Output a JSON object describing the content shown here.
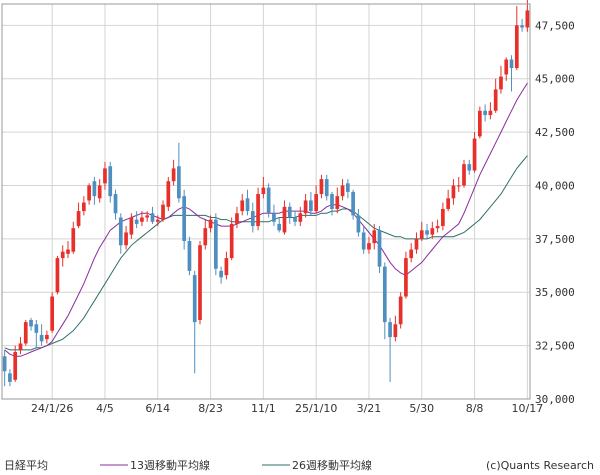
{
  "chart_data": {
    "type": "candlestick",
    "title": "",
    "xlabel": "",
    "ylabel": "",
    "ylim": [
      30000,
      48500
    ],
    "y_ticks": [
      30000,
      32500,
      35000,
      37500,
      40000,
      42500,
      45000,
      47500
    ],
    "y_tick_labels": [
      "30,000",
      "32,500",
      "35,000",
      "37,500",
      "40,000",
      "42,500",
      "45,000",
      "47,500"
    ],
    "grid": true,
    "legend_position": "bottom",
    "colors": {
      "up": "#e8302b",
      "down": "#4f8fc0",
      "ma13": "#8a2c9c",
      "ma26": "#2e6f6a",
      "grid": "#d4d4d4",
      "frame": "#999999"
    },
    "legend": [
      "日経平均",
      "13週移動平均線",
      "26週移動平均線"
    ],
    "x_ticks": [
      {
        "label": "24/1/26",
        "index": 9
      },
      {
        "label": "4/5",
        "index": 19
      },
      {
        "label": "6/14",
        "index": 29
      },
      {
        "label": "8/23",
        "index": 39
      },
      {
        "label": "11/1",
        "index": 49
      },
      {
        "label": "25/1/10",
        "index": 59
      },
      {
        "label": "3/21",
        "index": 69
      },
      {
        "label": "5/30",
        "index": 79
      },
      {
        "label": "8/8",
        "index": 89
      },
      {
        "label": "10/17",
        "index": 99
      }
    ],
    "candles": [
      [
        32000,
        31300,
        32300,
        30600
      ],
      [
        31200,
        30800,
        31400,
        30600
      ],
      [
        30900,
        32200,
        32500,
        30800
      ],
      [
        32300,
        32600,
        32900,
        32100
      ],
      [
        32600,
        33600,
        33700,
        32500
      ],
      [
        33700,
        33400,
        33800,
        33200
      ],
      [
        33500,
        33100,
        33700,
        32400
      ],
      [
        33000,
        32700,
        33500,
        32500
      ],
      [
        32800,
        33000,
        33200,
        32600
      ],
      [
        33200,
        34800,
        35000,
        33100
      ],
      [
        35000,
        36600,
        36700,
        34900
      ],
      [
        36600,
        36900,
        37200,
        36200
      ],
      [
        36800,
        37000,
        37400,
        36600
      ],
      [
        36900,
        38000,
        38300,
        36800
      ],
      [
        38100,
        38800,
        39200,
        38000
      ],
      [
        38800,
        39200,
        39500,
        38600
      ],
      [
        39300,
        40000,
        40100,
        39100
      ],
      [
        40200,
        39500,
        40400,
        39100
      ],
      [
        39400,
        40000,
        40300,
        39200
      ],
      [
        40100,
        40800,
        41100,
        39800
      ],
      [
        40900,
        39500,
        41100,
        39200
      ],
      [
        39600,
        38700,
        39800,
        38400
      ],
      [
        38500,
        37200,
        38700,
        36800
      ],
      [
        37200,
        37800,
        38100,
        37000
      ],
      [
        37700,
        38500,
        38700,
        37500
      ],
      [
        38400,
        38200,
        38800,
        38000
      ],
      [
        38300,
        38500,
        38800,
        38100
      ],
      [
        38500,
        38600,
        38800,
        38300
      ],
      [
        38700,
        38300,
        39000,
        38200
      ],
      [
        38300,
        38400,
        38600,
        38100
      ],
      [
        38400,
        39100,
        39300,
        38300
      ],
      [
        39000,
        40200,
        40400,
        38800
      ],
      [
        40200,
        40800,
        41200,
        40000
      ],
      [
        40900,
        39400,
        42000,
        39200
      ],
      [
        39500,
        37400,
        39800,
        37000
      ],
      [
        37400,
        36000,
        37600,
        35800
      ],
      [
        35800,
        33600,
        36000,
        31200
      ],
      [
        33700,
        37200,
        37400,
        33500
      ],
      [
        37200,
        38000,
        38400,
        37000
      ],
      [
        38000,
        38400,
        38600,
        37800
      ],
      [
        38400,
        36100,
        38700,
        35800
      ],
      [
        36000,
        35700,
        36200,
        35400
      ],
      [
        35800,
        36600,
        36900,
        35600
      ],
      [
        36600,
        38200,
        38500,
        36500
      ],
      [
        38200,
        38700,
        39000,
        38000
      ],
      [
        38800,
        39300,
        39600,
        38600
      ],
      [
        39400,
        38800,
        39800,
        38600
      ],
      [
        38800,
        38100,
        39200,
        37800
      ],
      [
        38100,
        39600,
        39900,
        37900
      ],
      [
        39600,
        39900,
        40400,
        39400
      ],
      [
        39900,
        38700,
        40100,
        38500
      ],
      [
        38700,
        38300,
        39100,
        38100
      ],
      [
        38200,
        37900,
        38500,
        37800
      ],
      [
        37800,
        39000,
        39300,
        37700
      ],
      [
        39000,
        38500,
        39200,
        38200
      ],
      [
        38500,
        38300,
        38800,
        38100
      ],
      [
        38300,
        38700,
        39000,
        38100
      ],
      [
        38700,
        39300,
        39600,
        38500
      ],
      [
        39300,
        38800,
        39700,
        38600
      ],
      [
        38800,
        39600,
        40000,
        38700
      ],
      [
        39600,
        40300,
        40500,
        39400
      ],
      [
        40300,
        39500,
        40500,
        39300
      ],
      [
        39600,
        38900,
        39700,
        38600
      ],
      [
        38900,
        39500,
        39900,
        38700
      ],
      [
        39500,
        40000,
        40300,
        39300
      ],
      [
        40100,
        39700,
        40300,
        39400
      ],
      [
        39700,
        38600,
        39800,
        38400
      ],
      [
        38600,
        37800,
        38900,
        37600
      ],
      [
        37800,
        37000,
        38100,
        36800
      ],
      [
        37000,
        37300,
        37600,
        36800
      ],
      [
        37300,
        37900,
        38200,
        37000
      ],
      [
        37900,
        36200,
        38100,
        35900
      ],
      [
        36200,
        33600,
        36400,
        32800
      ],
      [
        33600,
        32900,
        33800,
        30800
      ],
      [
        32900,
        33500,
        33900,
        32700
      ],
      [
        33500,
        34800,
        35000,
        33300
      ],
      [
        34800,
        36600,
        36900,
        34700
      ],
      [
        36600,
        37000,
        37300,
        36400
      ],
      [
        37000,
        37500,
        37800,
        36800
      ],
      [
        37500,
        37900,
        38300,
        37400
      ],
      [
        37900,
        37700,
        38200,
        37500
      ],
      [
        37700,
        38000,
        38300,
        37500
      ],
      [
        38000,
        38100,
        38400,
        37800
      ],
      [
        38100,
        38900,
        39200,
        37900
      ],
      [
        38900,
        39400,
        39800,
        38800
      ],
      [
        39400,
        40000,
        40300,
        39100
      ],
      [
        40000,
        40000,
        40400,
        39700
      ],
      [
        40000,
        41000,
        41200,
        39900
      ],
      [
        41000,
        40700,
        41200,
        40500
      ],
      [
        40700,
        42200,
        42500,
        40600
      ],
      [
        42300,
        43500,
        43700,
        42200
      ],
      [
        43500,
        43300,
        43800,
        43000
      ],
      [
        43300,
        43500,
        43900,
        43100
      ],
      [
        43500,
        44500,
        45000,
        43400
      ],
      [
        44500,
        45100,
        45600,
        44300
      ],
      [
        45200,
        45900,
        46000,
        44900
      ],
      [
        45900,
        45500,
        46100,
        44400
      ],
      [
        45500,
        47500,
        48400,
        45400
      ],
      [
        47500,
        47400,
        47800,
        47200
      ],
      [
        47400,
        48200,
        48700,
        47200
      ]
    ],
    "ma13": [
      32300,
      32100,
      32000,
      32000,
      32100,
      32200,
      32300,
      32400,
      32500,
      32700,
      33100,
      33500,
      33900,
      34400,
      34900,
      35400,
      36000,
      36600,
      37100,
      37500,
      37900,
      38100,
      38300,
      38400,
      38500,
      38600,
      38700,
      38700,
      38600,
      38500,
      38400,
      38500,
      38700,
      38900,
      39000,
      38900,
      38700,
      38500,
      38400,
      38300,
      38200,
      38100,
      38100,
      38100,
      38200,
      38300,
      38400,
      38500,
      38600,
      38700,
      38700,
      38700,
      38700,
      38800,
      38800,
      38800,
      38800,
      38800,
      38700,
      38700,
      38800,
      39000,
      39100,
      39100,
      39000,
      38900,
      38700,
      38400,
      38100,
      37800,
      37500,
      37200,
      36800,
      36400,
      36100,
      35900,
      35800,
      36000,
      36200,
      36400,
      36700,
      37000,
      37300,
      37600,
      37800,
      38000,
      38200,
      38700,
      39300,
      39900,
      40500,
      41000,
      41500,
      42000,
      42500,
      43000,
      43500,
      44000,
      44400,
      44800
    ],
    "ma26": [
      32400,
      32300,
      32300,
      32300,
      32300,
      32300,
      32400,
      32400,
      32500,
      32600,
      32700,
      32800,
      33000,
      33200,
      33500,
      33800,
      34200,
      34600,
      35000,
      35400,
      35800,
      36200,
      36600,
      36900,
      37200,
      37400,
      37600,
      37800,
      38000,
      38200,
      38400,
      38500,
      38600,
      38600,
      38600,
      38600,
      38600,
      38600,
      38600,
      38500,
      38500,
      38400,
      38400,
      38300,
      38300,
      38300,
      38300,
      38300,
      38300,
      38300,
      38300,
      38400,
      38500,
      38500,
      38500,
      38500,
      38600,
      38600,
      38600,
      38600,
      38700,
      38700,
      38800,
      38800,
      38900,
      38900,
      38800,
      38600,
      38400,
      38200,
      38000,
      37900,
      37800,
      37700,
      37600,
      37600,
      37500,
      37500,
      37500,
      37500,
      37500,
      37600,
      37600,
      37600,
      37600,
      37600,
      37700,
      37800,
      38000,
      38200,
      38400,
      38700,
      39000,
      39300,
      39600,
      40000,
      40400,
      40800,
      41100,
      41400
    ]
  },
  "footer": {
    "copyright": "(c)Quants Research"
  }
}
